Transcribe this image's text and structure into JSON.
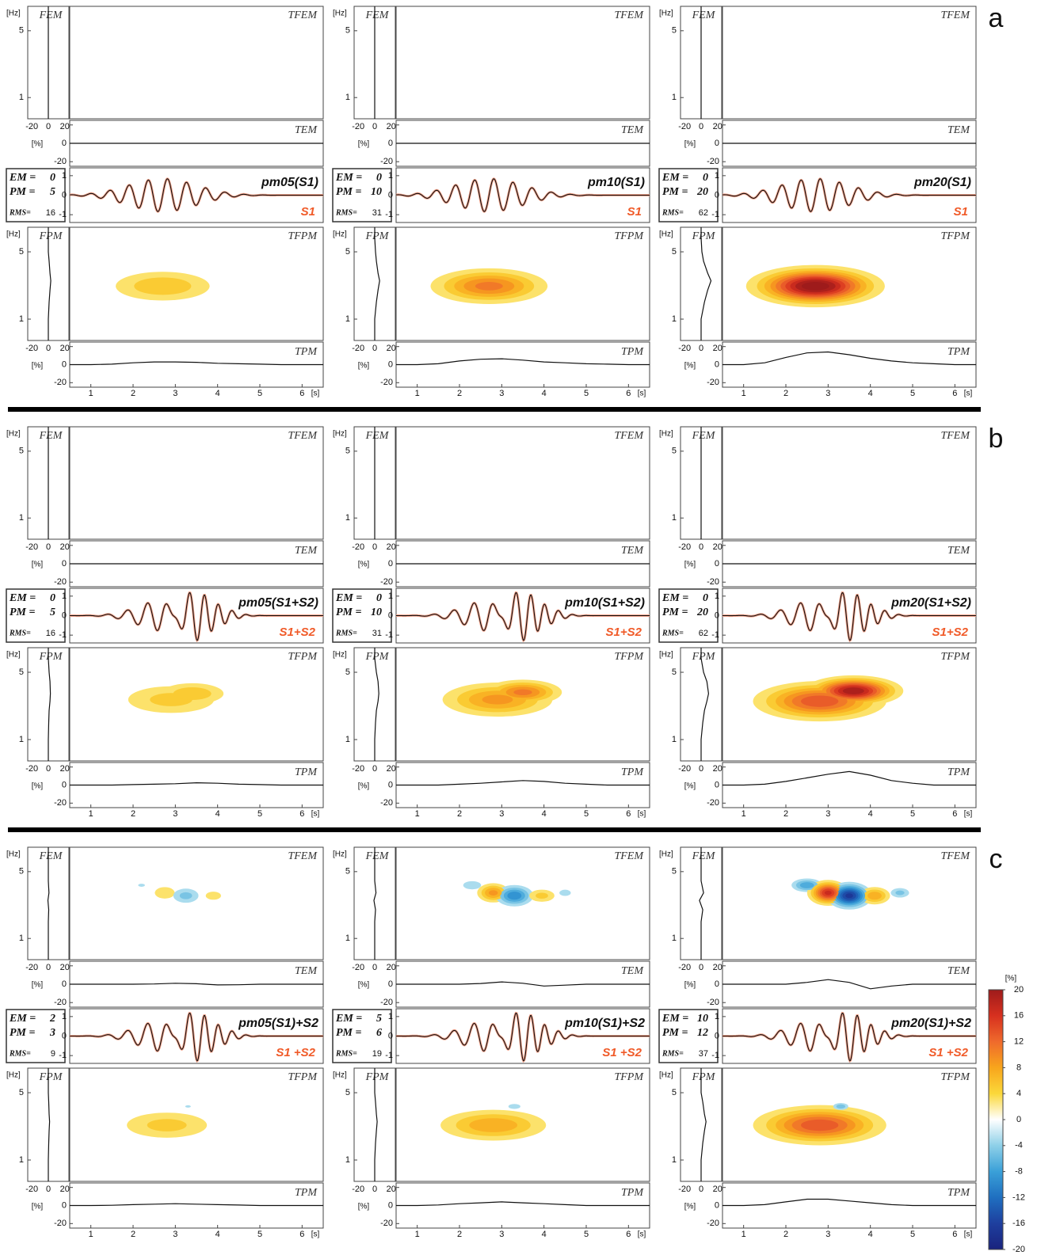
{
  "chart_data": {
    "type": "tf-misfit-grid",
    "labels": {
      "hz": "[Hz]",
      "pct": "[%]",
      "s": "[s]",
      "fem": "FEM",
      "tfem": "TFEM",
      "tem": "TEM",
      "fpm": "FPM",
      "tfpm": "TFPM",
      "tpm": "TPM",
      "em": "EM =",
      "pm": "PM =",
      "rms": "RMS="
    },
    "flim": [
      0.6,
      9
    ],
    "fticks": [
      1,
      5
    ],
    "tlim": [
      0.5,
      6.5
    ],
    "tticks": [
      1,
      2,
      3,
      4,
      5,
      6
    ],
    "plim": [
      -25,
      25
    ],
    "pticks": [
      -20,
      0,
      20
    ],
    "wlim": [
      -1.4,
      1.4
    ],
    "wticks": [
      -1,
      0,
      1
    ],
    "t_samples": [
      0.5,
      1,
      1.5,
      2,
      2.5,
      3,
      3.5,
      4,
      4.5,
      5,
      5.5,
      6,
      6.5
    ],
    "f_samples": [
      0.6,
      1,
      1.5,
      2,
      2.5,
      3,
      4,
      5,
      7,
      9
    ],
    "colorbar": {
      "label": "[%]",
      "ticks": [
        20,
        16,
        12,
        8,
        4,
        0,
        -4,
        -8,
        -12,
        -16,
        -20
      ],
      "colors": [
        "#9e1b1b",
        "#d7301f",
        "#ef6a2c",
        "#f8a51c",
        "#fbd83a",
        "#ffffff",
        "#8ed0e8",
        "#3aa0d8",
        "#1f6fc0",
        "#1e3f9e",
        "#1a237e"
      ]
    },
    "groups": [
      {
        "label": "a",
        "panels": [
          {
            "title": "pm05(S1)",
            "signal": "S1",
            "em": 0,
            "pm": 5,
            "rms": 16,
            "fem": [
              0,
              0,
              0,
              0,
              0,
              0,
              0,
              0,
              0,
              0
            ],
            "fpm": [
              0,
              0,
              1,
              2,
              3,
              2,
              1,
              0,
              0,
              0
            ],
            "tem": [
              0,
              0,
              0,
              0,
              0,
              0,
              0,
              0,
              0,
              0,
              0,
              0,
              0
            ],
            "tpm": [
              0,
              0,
              0.5,
              2,
              3,
              3,
              2.5,
              1.5,
              1,
              0.5,
              0,
              0,
              0
            ],
            "tfem": [],
            "tfpm": [
              {
                "t": 2.7,
                "f": 2.2,
                "peak": 6,
                "dt": 0.75,
                "df": 0.5
              }
            ],
            "waves": [
              {
                "t": 2.7,
                "f": 2.2,
                "a": 0.85,
                "s": 0.8
              }
            ]
          },
          {
            "title": "pm10(S1)",
            "signal": "S1",
            "em": 0,
            "pm": 10,
            "rms": 31,
            "fem": [
              0,
              0,
              0,
              0,
              0,
              0,
              0,
              0,
              0,
              0
            ],
            "fpm": [
              0,
              0,
              2,
              4,
              6,
              4,
              2,
              1,
              0,
              0
            ],
            "tem": [
              0,
              0,
              0,
              0,
              0,
              0,
              0,
              0,
              0,
              0,
              0,
              0,
              0
            ],
            "tpm": [
              0,
              0,
              1,
              4,
              6,
              6.5,
              5,
              3,
              2,
              1,
              0.5,
              0,
              0
            ],
            "tfem": [],
            "tfpm": [
              {
                "t": 2.7,
                "f": 2.2,
                "peak": 11,
                "dt": 0.75,
                "df": 0.5
              }
            ],
            "waves": [
              {
                "t": 2.7,
                "f": 2.2,
                "a": 0.85,
                "s": 0.8
              }
            ]
          },
          {
            "title": "pm20(S1)",
            "signal": "S1",
            "em": 0,
            "pm": 20,
            "rms": 62,
            "fem": [
              0,
              0,
              0,
              0,
              0,
              0,
              0,
              0,
              0,
              0
            ],
            "fpm": [
              0,
              0,
              4,
              8,
              12,
              8,
              3,
              1,
              0,
              0
            ],
            "tem": [
              0,
              0,
              0,
              0,
              0,
              0,
              0,
              0,
              0,
              0,
              0,
              0,
              0
            ],
            "tpm": [
              0,
              0,
              2,
              8,
              13,
              14,
              11,
              7,
              4,
              2,
              1,
              0,
              0
            ],
            "tfem": [],
            "tfpm": [
              {
                "t": 2.7,
                "f": 2.2,
                "peak": 22,
                "dt": 0.75,
                "df": 0.5
              }
            ],
            "waves": [
              {
                "t": 2.7,
                "f": 2.2,
                "a": 0.85,
                "s": 0.8
              }
            ]
          }
        ]
      },
      {
        "label": "b",
        "panels": [
          {
            "title": "pm05(S1+S2)",
            "signal": "S1+S2",
            "em": 0,
            "pm": 5,
            "rms": 16,
            "fem": [
              0,
              0,
              0,
              0,
              0,
              0,
              0,
              0,
              0,
              0
            ],
            "fpm": [
              0,
              0,
              0.5,
              1,
              2,
              2.5,
              2,
              1,
              0,
              0
            ],
            "tem": [
              0,
              0,
              0,
              0,
              0,
              0,
              0,
              0,
              0,
              0,
              0,
              0,
              0
            ],
            "tpm": [
              0,
              0,
              0,
              0.5,
              1,
              1.5,
              2.5,
              2,
              1,
              0.5,
              0,
              0,
              0
            ],
            "tfem": [],
            "tfpm": [
              {
                "t": 2.9,
                "f": 2.6,
                "peak": 5,
                "dt": 0.75,
                "df": 0.6
              },
              {
                "t": 3.4,
                "f": 3.0,
                "peak": 6,
                "dt": 0.5,
                "df": 0.5
              }
            ],
            "waves": [
              {
                "t": 2.7,
                "f": 2.1,
                "a": 0.75,
                "s": 0.6
              },
              {
                "t": 3.6,
                "f": 3.0,
                "a": 1.0,
                "s": 0.45
              }
            ]
          },
          {
            "title": "pm10(S1+S2)",
            "signal": "S1+S2",
            "em": 0,
            "pm": 10,
            "rms": 31,
            "fem": [
              0,
              0,
              0,
              0,
              0,
              0,
              0,
              0,
              0,
              0
            ],
            "fpm": [
              0,
              0,
              1,
              2,
              4,
              5,
              4,
              2,
              0,
              0
            ],
            "tem": [
              0,
              0,
              0,
              0,
              0,
              0,
              0,
              0,
              0,
              0,
              0,
              0,
              0
            ],
            "tpm": [
              0,
              0,
              0,
              1,
              2,
              3.5,
              5,
              4,
              2,
              1,
              0,
              0,
              0
            ],
            "tfem": [],
            "tfpm": [
              {
                "t": 2.9,
                "f": 2.6,
                "peak": 9,
                "dt": 0.75,
                "df": 0.6
              },
              {
                "t": 3.5,
                "f": 3.1,
                "peak": 11,
                "dt": 0.5,
                "df": 0.5
              }
            ],
            "waves": [
              {
                "t": 2.7,
                "f": 2.1,
                "a": 0.75,
                "s": 0.6
              },
              {
                "t": 3.6,
                "f": 3.0,
                "a": 1.0,
                "s": 0.45
              }
            ]
          },
          {
            "title": "pm20(S1+S2)",
            "signal": "S1+S2",
            "em": 0,
            "pm": 20,
            "rms": 62,
            "fem": [
              0,
              0,
              0,
              0,
              0,
              0,
              0,
              0,
              0,
              0
            ],
            "fpm": [
              0,
              0,
              2,
              4,
              7,
              9,
              7,
              3,
              0,
              0
            ],
            "tem": [
              0,
              0,
              0,
              0,
              0,
              0,
              0,
              0,
              0,
              0,
              0,
              0,
              0
            ],
            "tpm": [
              0,
              0,
              1,
              4,
              8,
              12,
              15,
              11,
              5,
              2,
              0,
              0,
              0
            ],
            "tfem": [],
            "tfpm": [
              {
                "t": 2.8,
                "f": 2.5,
                "peak": 14,
                "dt": 0.8,
                "df": 0.6
              },
              {
                "t": 3.6,
                "f": 3.2,
                "peak": 20,
                "dt": 0.55,
                "df": 0.55
              }
            ],
            "waves": [
              {
                "t": 2.7,
                "f": 2.1,
                "a": 0.75,
                "s": 0.6
              },
              {
                "t": 3.6,
                "f": 3.0,
                "a": 1.0,
                "s": 0.45
              }
            ]
          }
        ]
      },
      {
        "label": "c",
        "panels": [
          {
            "title": "pm05(S1)+S2",
            "signal": "S1 +S2",
            "em": 2,
            "pm": 3,
            "rms": 9,
            "fem": [
              0,
              0,
              0,
              0.5,
              -0.5,
              0.8,
              0,
              0,
              0,
              0
            ],
            "fpm": [
              0,
              0,
              0.5,
              1,
              1.5,
              1,
              0.5,
              0,
              0,
              0
            ],
            "tem": [
              0,
              0,
              0,
              0,
              0.3,
              1,
              0.5,
              -0.8,
              -0.6,
              0,
              0,
              0,
              0
            ],
            "tpm": [
              0,
              0,
              0.3,
              1,
              1.5,
              2,
              1.5,
              1,
              0.5,
              0,
              0,
              0,
              0
            ],
            "tfem": [
              {
                "t": 2.2,
                "f": 3.6,
                "peak": -2.5,
                "dt": 0.12,
                "df": 0.2
              },
              {
                "t": 2.75,
                "f": 3.0,
                "peak": 4,
                "dt": 0.2,
                "df": 0.35
              },
              {
                "t": 3.25,
                "f": 2.8,
                "peak": -5,
                "dt": 0.22,
                "df": 0.35
              },
              {
                "t": 3.9,
                "f": 2.8,
                "peak": 3,
                "dt": 0.2,
                "df": 0.3
              }
            ],
            "tfpm": [
              {
                "t": 2.8,
                "f": 2.3,
                "peak": 5,
                "dt": 0.7,
                "df": 0.5
              },
              {
                "t": 3.3,
                "f": 3.6,
                "peak": -2.5,
                "dt": 0.1,
                "df": 0.15
              }
            ],
            "waves": [
              {
                "t": 2.7,
                "f": 2.1,
                "a": 0.75,
                "s": 0.6
              },
              {
                "t": 3.6,
                "f": 3.0,
                "a": 1.0,
                "s": 0.45
              }
            ]
          },
          {
            "title": "pm10(S1)+S2",
            "signal": "S1 +S2",
            "em": 5,
            "pm": 6,
            "rms": 19,
            "fem": [
              0,
              0,
              0,
              1,
              -1,
              1.5,
              0,
              0,
              0,
              0
            ],
            "fpm": [
              0,
              0,
              1,
              2,
              3,
              2,
              1,
              0,
              0,
              0
            ],
            "tem": [
              0,
              0,
              0,
              0,
              0.8,
              2.5,
              1,
              -2,
              -1,
              0,
              0,
              0,
              0
            ],
            "tpm": [
              0,
              0,
              0.6,
              2,
              3,
              4,
              3,
              2,
              1,
              0,
              0,
              0,
              0
            ],
            "tfem": [
              {
                "t": 2.3,
                "f": 3.6,
                "peak": -4,
                "dt": 0.18,
                "df": 0.3
              },
              {
                "t": 2.8,
                "f": 3.0,
                "peak": 9,
                "dt": 0.22,
                "df": 0.4
              },
              {
                "t": 3.3,
                "f": 2.8,
                "peak": -10,
                "dt": 0.25,
                "df": 0.4
              },
              {
                "t": 3.95,
                "f": 2.8,
                "peak": 5,
                "dt": 0.22,
                "df": 0.3
              },
              {
                "t": 4.5,
                "f": 3.0,
                "peak": -3,
                "dt": 0.15,
                "df": 0.25
              }
            ],
            "tfpm": [
              {
                "t": 2.8,
                "f": 2.3,
                "peak": 8,
                "dt": 0.75,
                "df": 0.5
              },
              {
                "t": 3.3,
                "f": 3.6,
                "peak": -4,
                "dt": 0.12,
                "df": 0.18
              }
            ],
            "waves": [
              {
                "t": 2.7,
                "f": 2.1,
                "a": 0.75,
                "s": 0.6
              },
              {
                "t": 3.6,
                "f": 3.0,
                "a": 1.0,
                "s": 0.45
              }
            ]
          },
          {
            "title": "pm20(S1)+S2",
            "signal": "S1 +S2",
            "em": 10,
            "pm": 12,
            "rms": 37,
            "fem": [
              0,
              0,
              0,
              2,
              -2,
              3,
              0,
              0,
              0,
              0
            ],
            "fpm": [
              0,
              0,
              2,
              4,
              6,
              4,
              2,
              0,
              0,
              0
            ],
            "tem": [
              0,
              0,
              0,
              0,
              2,
              5,
              2,
              -5,
              -2,
              0,
              0,
              0,
              0
            ],
            "tpm": [
              0,
              0,
              1,
              4,
              7,
              7,
              5,
              3,
              1,
              0,
              0,
              0,
              0
            ],
            "tfem": [
              {
                "t": 2.5,
                "f": 3.6,
                "peak": -8,
                "dt": 0.22,
                "df": 0.35
              },
              {
                "t": 3.0,
                "f": 3.0,
                "peak": 17,
                "dt": 0.24,
                "df": 0.45
              },
              {
                "t": 3.5,
                "f": 2.8,
                "peak": -17,
                "dt": 0.26,
                "df": 0.45
              },
              {
                "t": 4.1,
                "f": 2.8,
                "peak": 8,
                "dt": 0.22,
                "df": 0.35
              },
              {
                "t": 4.7,
                "f": 3.0,
                "peak": -5,
                "dt": 0.16,
                "df": 0.25
              }
            ],
            "tfpm": [
              {
                "t": 2.8,
                "f": 2.3,
                "peak": 14,
                "dt": 0.8,
                "df": 0.55
              },
              {
                "t": 3.3,
                "f": 3.6,
                "peak": -6,
                "dt": 0.12,
                "df": 0.2
              }
            ],
            "waves": [
              {
                "t": 2.7,
                "f": 2.1,
                "a": 0.75,
                "s": 0.6
              },
              {
                "t": 3.6,
                "f": 3.0,
                "a": 1.0,
                "s": 0.45
              }
            ]
          }
        ]
      }
    ]
  }
}
